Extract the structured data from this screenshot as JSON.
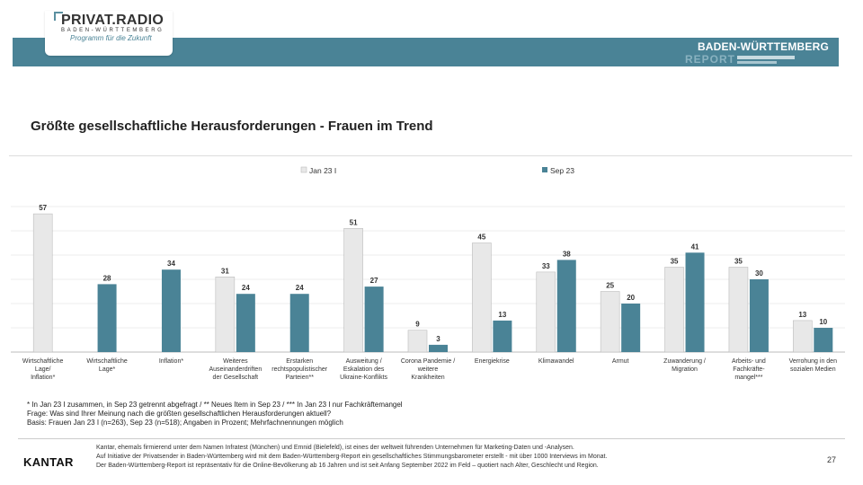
{
  "header": {
    "logo_main": "PRIVAT.RADIO",
    "logo_sub": "BADEN-WÜRTTEMBERG",
    "logo_tagline": "Programm für die Zukunft",
    "report_title": "BADEN-WÜRTTEMBERG",
    "report_subtitle": "REPORT"
  },
  "title": "Größte gesellschaftliche Herausforderungen - Frauen im Trend",
  "colors": {
    "jan": "#e8e8e8",
    "sep": "#4a8396",
    "banner": "#4a8396"
  },
  "chart_data": {
    "type": "bar",
    "legend_position": "top",
    "categories": [
      "Wirtschaftliche Lage/ Inflation*",
      "Wirtschaftliche Lage*",
      "Inflation*",
      "Weiteres Auseinanderdriften der Gesellschaft",
      "Erstarken rechtspopulistischer Parteien**",
      "Ausweitung / Eskalation des Ukraine-Konflikts",
      "Corona Pandemie / weitere Krankheiten",
      "Energiekrise",
      "Klimawandel",
      "Armut",
      "Zuwanderung / Migration",
      "Arbeits- und Fachkräfte-mangel***",
      "Verrohung in den sozialen Medien"
    ],
    "category_lines": [
      [
        "Wirtschaftliche",
        "Lage/",
        "Inflation*"
      ],
      [
        "Wirtschaftliche",
        "Lage*"
      ],
      [
        "Inflation*"
      ],
      [
        "Weiteres",
        "Auseinanderdriften",
        "der Gesellschaft"
      ],
      [
        "Erstarken",
        "rechtspopulistischer",
        "Parteien**"
      ],
      [
        "Ausweitung /",
        "Eskalation des",
        "Ukraine-Konflikts"
      ],
      [
        "Corona Pandemie /",
        "weitere",
        "Krankheiten"
      ],
      [
        "Energiekrise"
      ],
      [
        "Klimawandel"
      ],
      [
        "Armut"
      ],
      [
        "Zuwanderung /",
        "Migration"
      ],
      [
        "Arbeits- und",
        "Fachkräfte-",
        "mangel***"
      ],
      [
        "Verrohung in den",
        "sozialen Medien"
      ]
    ],
    "series": [
      {
        "name": "Jan 23 I",
        "values": [
          57,
          null,
          null,
          31,
          null,
          51,
          9,
          45,
          33,
          25,
          35,
          35,
          13
        ]
      },
      {
        "name": "Sep 23",
        "values": [
          null,
          28,
          34,
          24,
          24,
          27,
          3,
          13,
          38,
          20,
          41,
          30,
          10
        ]
      }
    ],
    "ylim": [
      0,
      60
    ],
    "grid": true
  },
  "notes": [
    "* In Jan 23 I zusammen, in Sep 23 getrennt abgefragt / ** Neues Item in Sep 23 / *** In Jan 23 I nur Fachkräftemangel",
    "Frage: Was sind Ihrer Meinung nach die größten gesellschaftlichen Herausforderungen aktuell?",
    "Basis: Frauen Jan 23 I (n=263), Sep 23 (n=518); Angaben in Prozent; Mehrfachnennungen möglich"
  ],
  "footer": {
    "brand": "KANTAR",
    "disclaimer": [
      "Kantar, ehemals firmierend unter dem Namen Infratest (München) und Emnid (Bielefeld), ist eines der weltweit führenden Unternehmen für Marketing-Daten und -Analysen.",
      "Auf Initiative der Privatsender in Baden-Württemberg wird mit dem Baden-Württemberg-Report ein gesellschaftliches Stimmungsbarometer erstellt - mit über 1000 Interviews im Monat.",
      "Der Baden-Württemberg-Report ist repräsentativ für die Online-Bevölkerung ab 16 Jahren und ist seit Anfang September 2022 im Feld – quotiert nach Alter, Geschlecht und Region."
    ],
    "page_number": "27"
  }
}
